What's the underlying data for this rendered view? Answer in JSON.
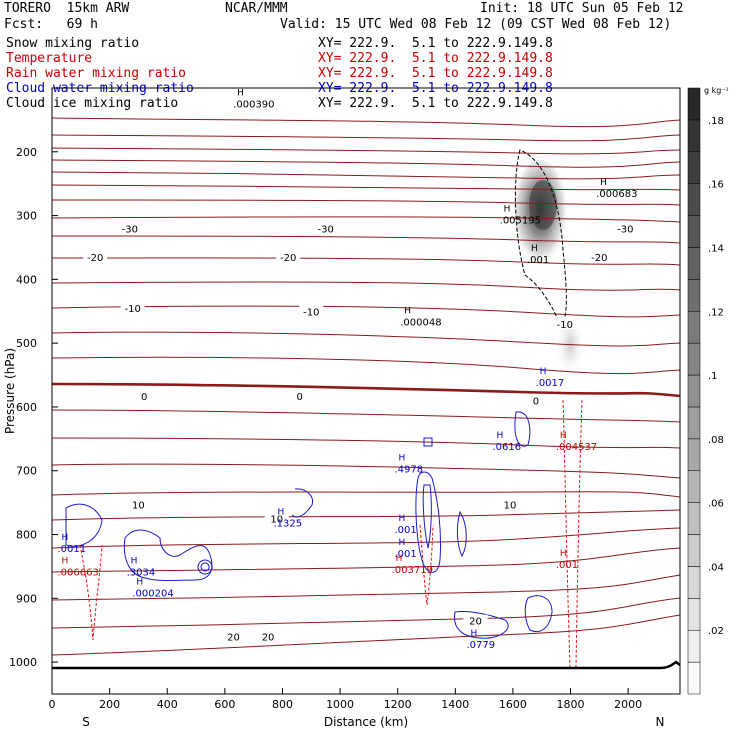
{
  "header": {
    "model": "TORERO  15km ARW",
    "center": "NCAR/MMM",
    "init": "Init: 18 UTC Sun 05 Feb 12",
    "fcst": "Fcst:   69 h",
    "valid": "Valid: 15 UTC Wed 08 Feb 12 (09 CST Wed 08 Feb 12)"
  },
  "fields": [
    {
      "name": "Snow mixing ratio",
      "xy": "XY= 222.9.  5.1 to 222.9.149.8",
      "color": "#000000"
    },
    {
      "name": "Temperature",
      "xy": "XY= 222.9.  5.1 to 222.9.149.8",
      "color": "#cc0000"
    },
    {
      "name": "Rain water mixing ratio",
      "xy": "XY= 222.9.  5.1 to 222.9.149.8",
      "color": "#cc0000"
    },
    {
      "name": "Cloud water mixing ratio",
      "xy": "XY= 222.9.  5.1 to 222.9.149.8",
      "color": "#0000cc"
    },
    {
      "name": "Cloud ice mixing ratio",
      "xy": "XY= 222.9.  5.1 to 222.9.149.8",
      "color": "#000000"
    }
  ],
  "chart_data": {
    "type": "cross-section",
    "xlabel": "Distance (km)",
    "ylabel": "Pressure (hPa)",
    "xlim": [
      0,
      2180
    ],
    "ylim": [
      1050,
      100
    ],
    "x_ticks": [
      0,
      200,
      400,
      600,
      800,
      1000,
      1200,
      1400,
      1600,
      1800,
      2000
    ],
    "y_ticks": [
      200,
      300,
      400,
      500,
      600,
      700,
      800,
      900,
      1000
    ],
    "x_end_labels": {
      "left": "S",
      "right": "N"
    },
    "colorbar": {
      "unit": "g kg⁻¹",
      "labels": [
        ".02",
        ".04",
        ".06",
        ".08",
        ".1",
        ".12",
        ".14",
        ".16",
        ".18"
      ],
      "levels": [
        0.01,
        0.02,
        0.03,
        0.04,
        0.05,
        0.06,
        0.07,
        0.08,
        0.09,
        0.1,
        0.11,
        0.12,
        0.13,
        0.14,
        0.15,
        0.16,
        0.17,
        0.18,
        0.19
      ]
    },
    "temperature_labels": [
      {
        "text": "-30",
        "x": 270,
        "p": 320
      },
      {
        "text": "-30",
        "x": 950,
        "p": 320
      },
      {
        "text": "-30",
        "x": 1990,
        "p": 320
      },
      {
        "text": "-20",
        "x": 150,
        "p": 365
      },
      {
        "text": "-20",
        "x": 820,
        "p": 365
      },
      {
        "text": "-20",
        "x": 1900,
        "p": 365
      },
      {
        "text": "-10",
        "x": 280,
        "p": 445
      },
      {
        "text": "-10",
        "x": 900,
        "p": 450
      },
      {
        "text": "-10",
        "x": 1780,
        "p": 470
      },
      {
        "text": "0",
        "x": 320,
        "p": 583
      },
      {
        "text": "0",
        "x": 860,
        "p": 583
      },
      {
        "text": "0",
        "x": 1680,
        "p": 590
      },
      {
        "text": "10",
        "x": 300,
        "p": 753
      },
      {
        "text": "10",
        "x": 780,
        "p": 775
      },
      {
        "text": "10",
        "x": 1590,
        "p": 753
      },
      {
        "text": "20",
        "x": 630,
        "p": 960
      },
      {
        "text": "20",
        "x": 750,
        "p": 960
      },
      {
        "text": "20",
        "x": 1470,
        "p": 935
      }
    ],
    "maxima": [
      {
        "text": ".000390",
        "x": 740,
        "p": 118,
        "color": "#000000"
      },
      {
        "text": ".000683",
        "x": 2000,
        "p": 258,
        "color": "#000000"
      },
      {
        "text": ".005195",
        "x": 1665,
        "p": 300,
        "color": "#000000"
      },
      {
        "text": ".001",
        "x": 1760,
        "p": 362,
        "color": "#000000"
      },
      {
        "text": ".000048",
        "x": 1320,
        "p": 460,
        "color": "#000000"
      },
      {
        "text": ".0017",
        "x": 1790,
        "p": 555,
        "color": "#0000cc"
      },
      {
        "text": ".0616",
        "x": 1640,
        "p": 655,
        "color": "#0000cc"
      },
      {
        "text": ".004537",
        "x": 1860,
        "p": 655,
        "color": "#cc0000"
      },
      {
        "text": ".4978",
        "x": 1300,
        "p": 690,
        "color": "#0000cc"
      },
      {
        "text": ".1325",
        "x": 880,
        "p": 775,
        "color": "#0000cc"
      },
      {
        "text": ".001",
        "x": 1300,
        "p": 785,
        "color": "#0000cc"
      },
      {
        "text": ".001",
        "x": 1300,
        "p": 823,
        "color": "#0000cc"
      },
      {
        "text": ".0011",
        "x": 130,
        "p": 815,
        "color": "#0000cc"
      },
      {
        "text": ".003719",
        "x": 1290,
        "p": 848,
        "color": "#cc0000"
      },
      {
        "text": ".006663",
        "x": 130,
        "p": 852,
        "color": "#cc0000"
      },
      {
        "text": ".3034",
        "x": 370,
        "p": 852,
        "color": "#0000cc"
      },
      {
        "text": ".000204",
        "x": 390,
        "p": 885,
        "color": "#0000cc"
      },
      {
        "text": ".001",
        "x": 1860,
        "p": 840,
        "color": "#cc0000"
      },
      {
        "text": ".0779",
        "x": 1550,
        "p": 965,
        "color": "#0000cc"
      }
    ]
  }
}
